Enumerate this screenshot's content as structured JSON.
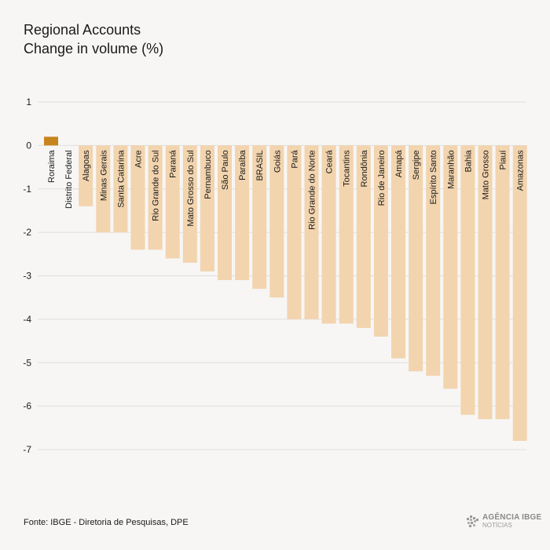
{
  "header": {
    "title_line1": "Regional Accounts",
    "title_line2": "Change in volume (%)"
  },
  "footer": {
    "source": "Fonte: IBGE - Diretoria de Pesquisas, DPE",
    "logo_line1": "AGÊNCIA IBGE",
    "logo_line2": "NOTÍCIAS"
  },
  "colors": {
    "positive_bar": "#c8841e",
    "negative_bar": "#f2d4ae",
    "grid": "#e1dfdc",
    "background": "#f7f6f5"
  },
  "chart_data": {
    "type": "bar",
    "title": "Regional Accounts Change in volume (%)",
    "ylim": [
      -7,
      1
    ],
    "yticks": [
      1,
      0,
      -1,
      -2,
      -3,
      -4,
      -5,
      -6,
      -7
    ],
    "grid": true,
    "categories": [
      "Roraima",
      "Distrito Federal",
      "Alagoas",
      "Minas Gerais",
      "Santa Catarina",
      "Acre",
      "Rio Grande do Sul",
      "Paraná",
      "Mato Grosso do Sul",
      "Pernambuco",
      "São Paulo",
      "Paraíba",
      "BRASIL",
      "Goiás",
      "Pará",
      "Rio Grande do Norte",
      "Ceará",
      "Tocantins",
      "Rondônia",
      "Rio de Janeiro",
      "Amapá",
      "Sergipe",
      "Espírito Santo",
      "Maranhão",
      "Bahia",
      "Mato Grosso",
      "Piauí",
      "Amazonas"
    ],
    "values": [
      0.2,
      0.0,
      -1.4,
      -2.0,
      -2.0,
      -2.4,
      -2.4,
      -2.6,
      -2.7,
      -2.9,
      -3.1,
      -3.1,
      -3.3,
      -3.5,
      -4.0,
      -4.0,
      -4.1,
      -4.1,
      -4.2,
      -4.4,
      -4.9,
      -5.2,
      -5.3,
      -5.6,
      -6.2,
      -6.3,
      -6.3,
      -6.8
    ]
  }
}
